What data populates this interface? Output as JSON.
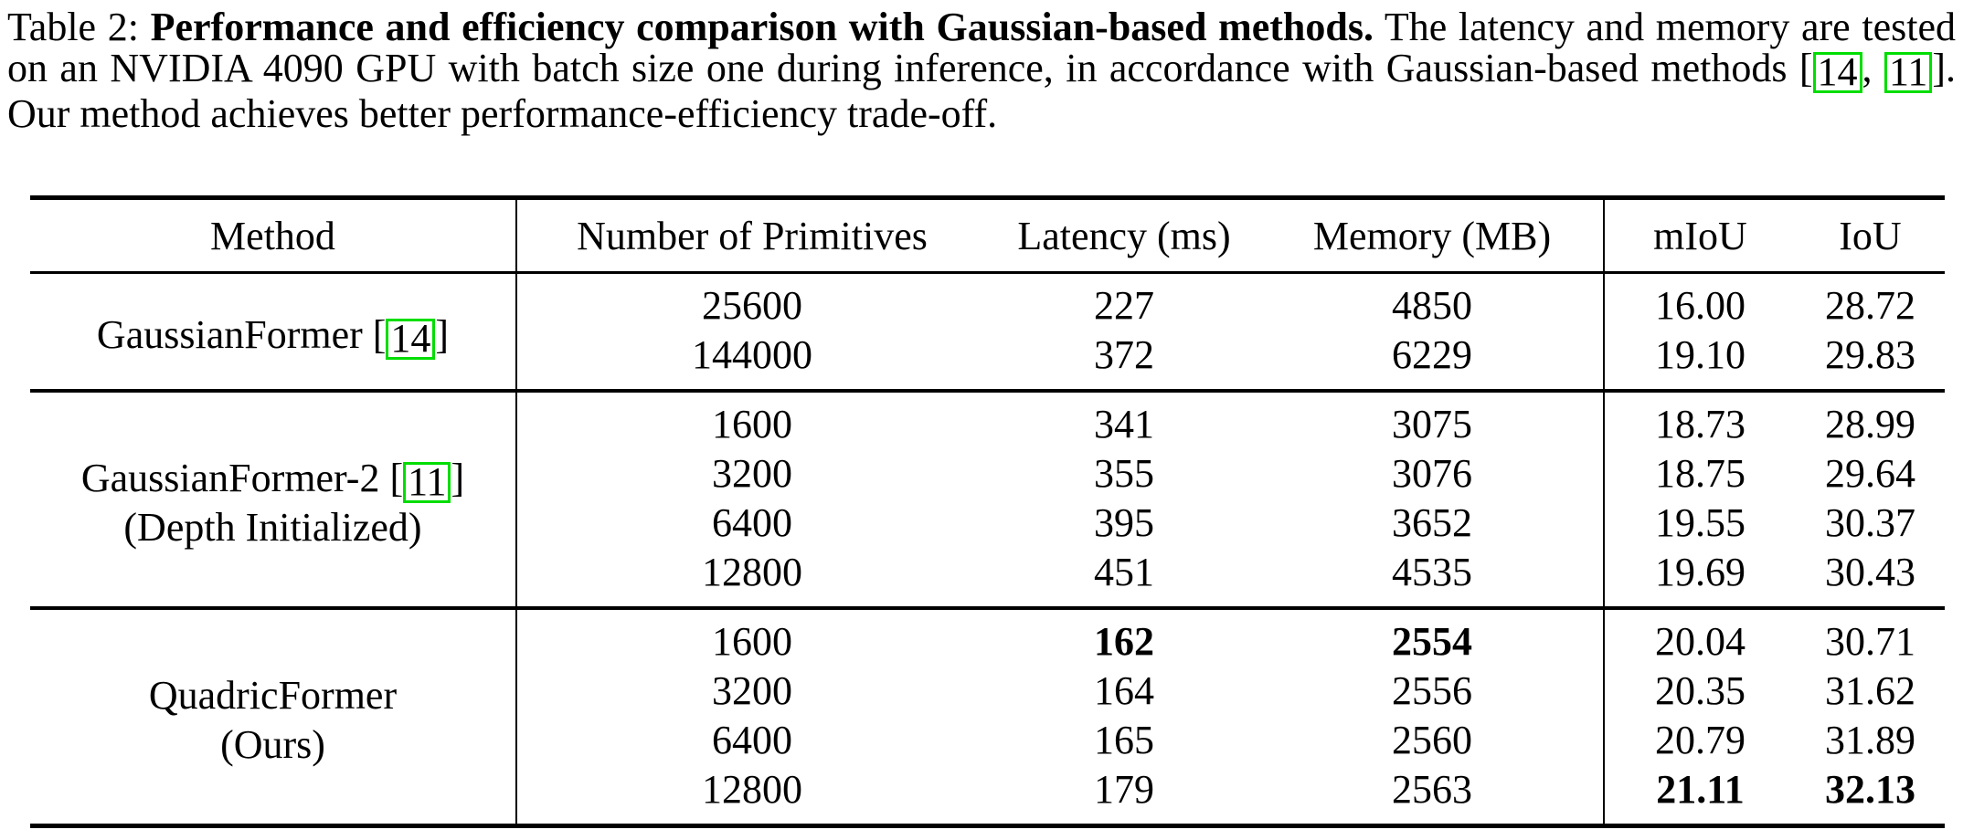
{
  "caption": {
    "segments": [
      {
        "text": "Table 2: ",
        "style": "normal"
      },
      {
        "text": "Performance and efficiency comparison with Gaussian-based methods.",
        "style": "bold"
      },
      {
        "text": " The latency and memory are tested on an NVIDIA 4090 GPU with batch size one during inference, in accordance with Gaussian-based methods [",
        "style": "normal"
      },
      {
        "text": "14",
        "style": "citation"
      },
      {
        "text": ", ",
        "style": "normal"
      },
      {
        "text": "11",
        "style": "citation"
      },
      {
        "text": "]. Our method achieves better performance-efficiency trade-off.",
        "style": "normal"
      }
    ]
  },
  "table": {
    "columns": [
      "Method",
      "Number of Primitives",
      "Latency (ms)",
      "Memory (MB)",
      "mIoU",
      "IoU"
    ],
    "field_names": [
      "primitives",
      "latency",
      "memory",
      "miou",
      "iou"
    ],
    "groups": [
      {
        "method_lines": [
          [
            {
              "text": "GaussianFormer ["
            },
            {
              "text": "14",
              "cite": true
            },
            {
              "text": "]"
            }
          ]
        ],
        "rows": [
          {
            "cells": [
              "25600",
              "227",
              "4850",
              "16.00",
              "28.72"
            ],
            "bold": [
              false,
              false,
              false,
              false,
              false
            ]
          },
          {
            "cells": [
              "144000",
              "372",
              "6229",
              "19.10",
              "29.83"
            ],
            "bold": [
              false,
              false,
              false,
              false,
              false
            ]
          }
        ]
      },
      {
        "method_lines": [
          [
            {
              "text": "GaussianFormer-2 ["
            },
            {
              "text": "11",
              "cite": true
            },
            {
              "text": "]"
            }
          ],
          [
            {
              "text": "(Depth Initialized)"
            }
          ]
        ],
        "rows": [
          {
            "cells": [
              "1600",
              "341",
              "3075",
              "18.73",
              "28.99"
            ],
            "bold": [
              false,
              false,
              false,
              false,
              false
            ]
          },
          {
            "cells": [
              "3200",
              "355",
              "3076",
              "18.75",
              "29.64"
            ],
            "bold": [
              false,
              false,
              false,
              false,
              false
            ]
          },
          {
            "cells": [
              "6400",
              "395",
              "3652",
              "19.55",
              "30.37"
            ],
            "bold": [
              false,
              false,
              false,
              false,
              false
            ]
          },
          {
            "cells": [
              "12800",
              "451",
              "4535",
              "19.69",
              "30.43"
            ],
            "bold": [
              false,
              false,
              false,
              false,
              false
            ]
          }
        ]
      },
      {
        "method_lines": [
          [
            {
              "text": "QuadricFormer"
            }
          ],
          [
            {
              "text": "(Ours)"
            }
          ]
        ],
        "rows": [
          {
            "cells": [
              "1600",
              "162",
              "2554",
              "20.04",
              "30.71"
            ],
            "bold": [
              false,
              true,
              true,
              false,
              false
            ]
          },
          {
            "cells": [
              "3200",
              "164",
              "2556",
              "20.35",
              "31.62"
            ],
            "bold": [
              false,
              false,
              false,
              false,
              false
            ]
          },
          {
            "cells": [
              "6400",
              "165",
              "2560",
              "20.79",
              "31.89"
            ],
            "bold": [
              false,
              false,
              false,
              false,
              false
            ]
          },
          {
            "cells": [
              "12800",
              "179",
              "2563",
              "21.11",
              "32.13"
            ],
            "bold": [
              false,
              false,
              false,
              true,
              true
            ]
          }
        ]
      }
    ]
  },
  "colors": {
    "citation_box": "#00dd00",
    "text": "#000000",
    "background": "#ffffff"
  }
}
